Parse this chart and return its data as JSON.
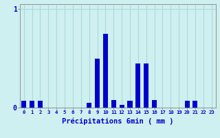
{
  "xlabel": "Précipitations 6min ( mm )",
  "ylabel": "",
  "background_color": "#cff0f0",
  "bar_color": "#0000cc",
  "grid_color": "#aadada",
  "axis_color": "#999999",
  "text_color": "#0000cc",
  "categories": [
    0,
    1,
    2,
    3,
    4,
    5,
    6,
    7,
    8,
    9,
    10,
    11,
    12,
    13,
    14,
    15,
    16,
    17,
    18,
    19,
    20,
    21,
    22,
    23
  ],
  "values": [
    0.07,
    0.07,
    0.07,
    0,
    0,
    0,
    0,
    0,
    0.05,
    0.5,
    0.75,
    0.08,
    0.03,
    0.07,
    0.45,
    0.45,
    0.08,
    0,
    0,
    0,
    0.07,
    0.07,
    0,
    0
  ],
  "ylim": [
    0,
    1.05
  ],
  "yticks": [
    0,
    1
  ],
  "ytick_labels": [
    "0",
    "1"
  ],
  "xlim": [
    -0.5,
    23.5
  ],
  "bar_width": 0.6
}
